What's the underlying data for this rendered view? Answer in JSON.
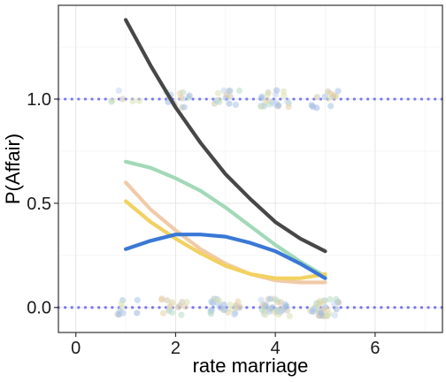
{
  "chart_data": {
    "type": "scatter",
    "title": "",
    "xlabel": "rate marriage",
    "ylabel": "P(Affair)",
    "xlim": [
      -0.35,
      7.35
    ],
    "ylim": [
      -0.12,
      1.45
    ],
    "grid": true,
    "x_ticks": [
      0,
      2,
      4,
      6
    ],
    "x_tick_labels": [
      "0",
      "2",
      "4",
      "6"
    ],
    "y_ticks": [
      0.0,
      0.5,
      1.0
    ],
    "y_tick_labels": [
      "0.0",
      "0.5",
      "1.0"
    ],
    "reference_lines": {
      "y": [
        0,
        1
      ],
      "color": "#7b7bf0",
      "style": "dotted"
    },
    "jitter_clusters": [
      {
        "x": 1,
        "y": 0,
        "count": 10
      },
      {
        "x": 2,
        "y": 0,
        "count": 16
      },
      {
        "x": 3,
        "y": 0,
        "count": 26
      },
      {
        "x": 4,
        "y": 0,
        "count": 34
      },
      {
        "x": 5,
        "y": 0,
        "count": 40
      },
      {
        "x": 1,
        "y": 1,
        "count": 6
      },
      {
        "x": 2,
        "y": 1,
        "count": 14
      },
      {
        "x": 3,
        "y": 1,
        "count": 14
      },
      {
        "x": 4,
        "y": 1,
        "count": 22
      },
      {
        "x": 5,
        "y": 1,
        "count": 14
      }
    ],
    "point_colors": [
      "#a8c5e8",
      "#b8dcc6",
      "#e8cfa8",
      "#c4d6f0",
      "#d8e2b0",
      "#9fb8e0",
      "#cfc6b0"
    ],
    "series": [
      {
        "color": "#474747",
        "x": [
          1,
          1.5,
          2,
          2.5,
          3,
          3.5,
          4,
          4.5,
          5
        ],
        "y": [
          1.38,
          1.16,
          0.96,
          0.79,
          0.64,
          0.52,
          0.41,
          0.33,
          0.27
        ]
      },
      {
        "color": "#a2d9b8",
        "x": [
          1,
          1.5,
          2,
          2.5,
          3,
          3.5,
          4,
          4.5,
          5
        ],
        "y": [
          0.7,
          0.67,
          0.62,
          0.56,
          0.48,
          0.39,
          0.3,
          0.22,
          0.15
        ]
      },
      {
        "color": "#f0cba8",
        "x": [
          1,
          1.5,
          2,
          2.5,
          3,
          3.5,
          4,
          4.5,
          5
        ],
        "y": [
          0.6,
          0.47,
          0.37,
          0.28,
          0.21,
          0.16,
          0.13,
          0.12,
          0.12
        ]
      },
      {
        "color": "#f2d160",
        "x": [
          1,
          1.5,
          2,
          2.5,
          3,
          3.5,
          4,
          4.5,
          5
        ],
        "y": [
          0.51,
          0.41,
          0.33,
          0.26,
          0.2,
          0.16,
          0.14,
          0.14,
          0.16
        ]
      },
      {
        "color": "#3a78d6",
        "x": [
          1,
          1.5,
          2,
          2.5,
          3,
          3.5,
          4,
          4.5,
          5
        ],
        "y": [
          0.28,
          0.32,
          0.35,
          0.35,
          0.34,
          0.31,
          0.27,
          0.21,
          0.14
        ]
      }
    ]
  }
}
